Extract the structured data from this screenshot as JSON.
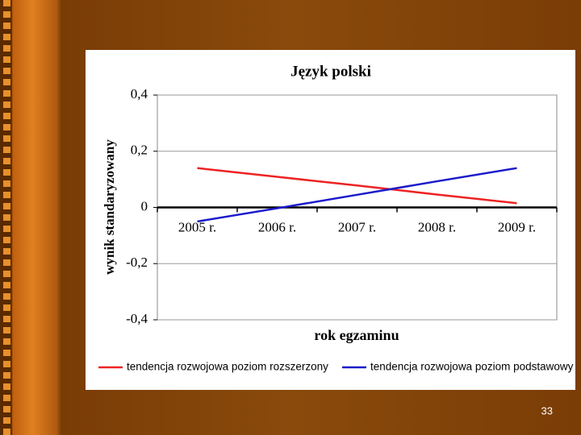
{
  "chart_data": {
    "type": "line",
    "title": "Język polski",
    "x_label": "rok egzaminu",
    "y_label": "wynik standaryzowany",
    "categories": [
      "2005 r.",
      "2006 r.",
      "2007 r.",
      "2008 r.",
      "2009 r."
    ],
    "series": [
      {
        "name": "tendencja rozwojowa poziom rozszerzony",
        "color": "#ee2222",
        "values": [
          0.14,
          0.109,
          0.078,
          0.046,
          0.015
        ]
      },
      {
        "name": "tendencja rozwojowa poziom podstawowy",
        "color": "#1a1acc",
        "values": [
          -0.05,
          -0.003,
          0.045,
          0.093,
          0.14
        ]
      }
    ],
    "ylim": [
      -0.4,
      0.4
    ],
    "yticks": [
      {
        "value": -0.4,
        "label": "-0,4"
      },
      {
        "value": -0.2,
        "label": "-0,2"
      },
      0,
      {
        "value": 0.2,
        "label": "0,2"
      },
      {
        "value": 0.4,
        "label": "0,4"
      }
    ],
    "grid": true,
    "legend": "bottom"
  },
  "slide": {
    "number": "33"
  }
}
